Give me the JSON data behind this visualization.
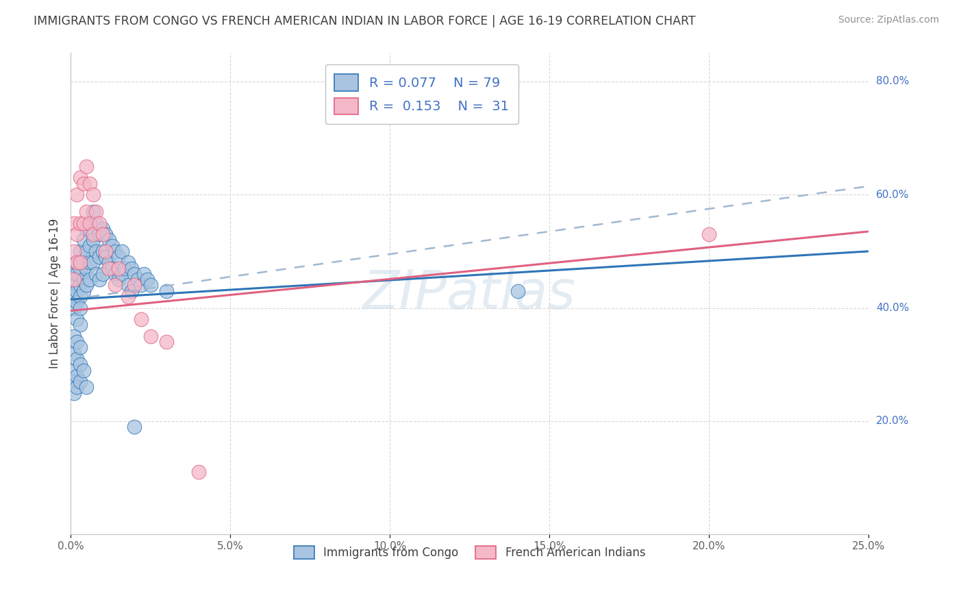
{
  "title": "IMMIGRANTS FROM CONGO VS FRENCH AMERICAN INDIAN IN LABOR FORCE | AGE 16-19 CORRELATION CHART",
  "source": "Source: ZipAtlas.com",
  "ylabel": "In Labor Force | Age 16-19",
  "watermark": "ZIPatlas",
  "legend_blue_r": "0.077",
  "legend_blue_n": "79",
  "legend_pink_r": "0.153",
  "legend_pink_n": "31",
  "xmin": 0.0,
  "xmax": 0.25,
  "ymin": 0.0,
  "ymax": 0.85,
  "xtick_labels": [
    "0.0%",
    "5.0%",
    "10.0%",
    "15.0%",
    "20.0%",
    "25.0%"
  ],
  "xtick_vals": [
    0.0,
    0.05,
    0.1,
    0.15,
    0.2,
    0.25
  ],
  "ytick_labels": [
    "20.0%",
    "40.0%",
    "60.0%",
    "80.0%"
  ],
  "ytick_vals": [
    0.2,
    0.4,
    0.6,
    0.8
  ],
  "blue_color": "#a8c4e0",
  "blue_edge_color": "#2E75B6",
  "pink_color": "#f4b8c8",
  "pink_edge_color": "#e06080",
  "title_color": "#404040",
  "source_color": "#909090",
  "axis_label_color": "#404040",
  "legend_text_color": "#4472C4",
  "grid_color": "#d8d8d8",
  "right_axis_color": "#4472C4",
  "blue_trend_x0": 0.0,
  "blue_trend_x1": 0.25,
  "blue_trend_y0": 0.415,
  "blue_trend_y1": 0.5,
  "pink_trend_x0": 0.0,
  "pink_trend_x1": 0.25,
  "pink_trend_y0": 0.395,
  "pink_trend_y1": 0.535,
  "dash_trend_x0": 0.0,
  "dash_trend_x1": 0.25,
  "dash_trend_y0": 0.415,
  "dash_trend_y1": 0.615,
  "blue_scatter_x": [
    0.001,
    0.001,
    0.001,
    0.001,
    0.002,
    0.002,
    0.002,
    0.002,
    0.002,
    0.003,
    0.003,
    0.003,
    0.003,
    0.003,
    0.003,
    0.004,
    0.004,
    0.004,
    0.004,
    0.005,
    0.005,
    0.005,
    0.005,
    0.006,
    0.006,
    0.006,
    0.006,
    0.007,
    0.007,
    0.007,
    0.008,
    0.008,
    0.008,
    0.009,
    0.009,
    0.009,
    0.01,
    0.01,
    0.01,
    0.011,
    0.011,
    0.012,
    0.012,
    0.013,
    0.013,
    0.014,
    0.014,
    0.015,
    0.015,
    0.016,
    0.016,
    0.017,
    0.018,
    0.018,
    0.019,
    0.019,
    0.02,
    0.021,
    0.022,
    0.023,
    0.024,
    0.025,
    0.03,
    0.001,
    0.001,
    0.001,
    0.001,
    0.001,
    0.002,
    0.002,
    0.002,
    0.002,
    0.003,
    0.003,
    0.003,
    0.004,
    0.005,
    0.14,
    0.02
  ],
  "blue_scatter_y": [
    0.46,
    0.44,
    0.42,
    0.4,
    0.48,
    0.46,
    0.43,
    0.41,
    0.38,
    0.5,
    0.47,
    0.44,
    0.42,
    0.4,
    0.37,
    0.52,
    0.48,
    0.45,
    0.43,
    0.54,
    0.5,
    0.47,
    0.44,
    0.55,
    0.51,
    0.48,
    0.45,
    0.57,
    0.52,
    0.48,
    0.55,
    0.5,
    0.46,
    0.53,
    0.49,
    0.45,
    0.54,
    0.5,
    0.46,
    0.53,
    0.49,
    0.52,
    0.48,
    0.51,
    0.47,
    0.5,
    0.46,
    0.49,
    0.45,
    0.5,
    0.46,
    0.47,
    0.48,
    0.44,
    0.47,
    0.43,
    0.46,
    0.45,
    0.44,
    0.46,
    0.45,
    0.44,
    0.43,
    0.35,
    0.32,
    0.29,
    0.27,
    0.25,
    0.34,
    0.31,
    0.28,
    0.26,
    0.33,
    0.3,
    0.27,
    0.29,
    0.26,
    0.43,
    0.19
  ],
  "pink_scatter_x": [
    0.001,
    0.001,
    0.001,
    0.002,
    0.002,
    0.002,
    0.003,
    0.003,
    0.003,
    0.004,
    0.004,
    0.005,
    0.005,
    0.006,
    0.006,
    0.007,
    0.007,
    0.008,
    0.009,
    0.01,
    0.011,
    0.012,
    0.014,
    0.015,
    0.018,
    0.02,
    0.022,
    0.025,
    0.03,
    0.2,
    0.04
  ],
  "pink_scatter_y": [
    0.55,
    0.5,
    0.45,
    0.6,
    0.53,
    0.48,
    0.63,
    0.55,
    0.48,
    0.62,
    0.55,
    0.65,
    0.57,
    0.62,
    0.55,
    0.6,
    0.53,
    0.57,
    0.55,
    0.53,
    0.5,
    0.47,
    0.44,
    0.47,
    0.42,
    0.44,
    0.38,
    0.35,
    0.34,
    0.53,
    0.11
  ]
}
